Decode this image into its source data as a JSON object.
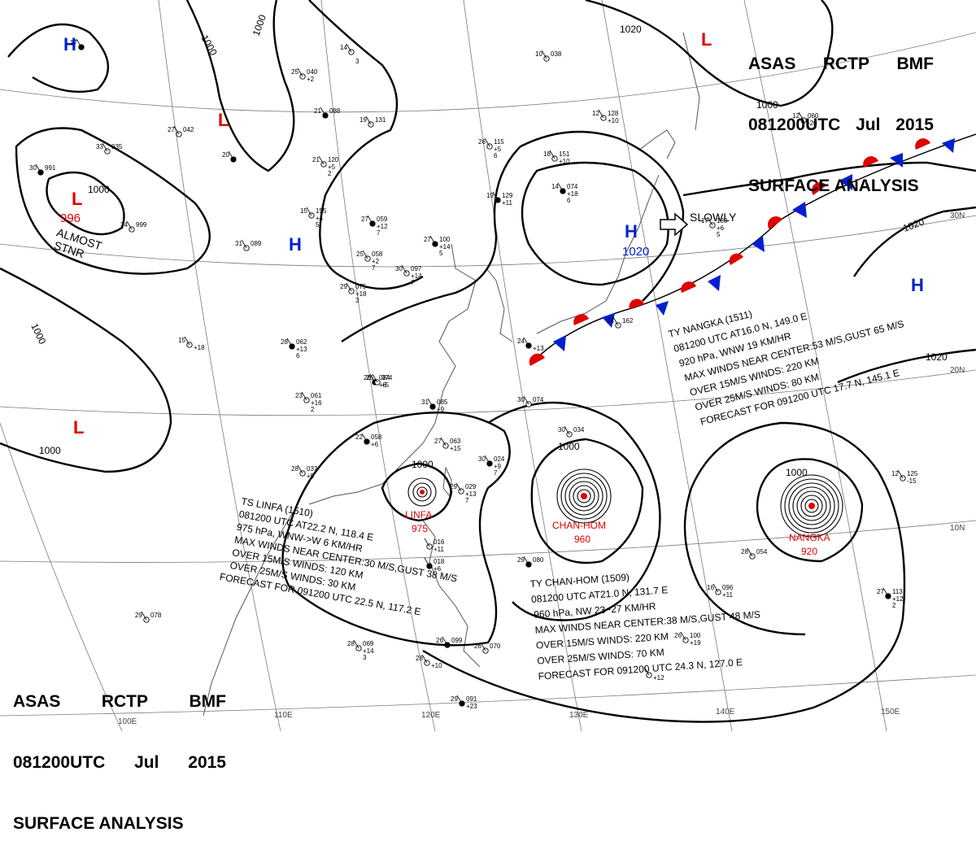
{
  "header": {
    "line1": [
      "ASAS",
      "RCTP",
      "BMF"
    ],
    "line2": [
      "081200UTC",
      "Jul",
      "2015"
    ],
    "line3": "SURFACE ANALYSIS"
  },
  "colors": {
    "low": "#e00000",
    "high": "#0020d0",
    "isobar": "#000000",
    "grid": "#7a7a7a",
    "coast": "#555555"
  },
  "grid_labels": {
    "lon": [
      "100E",
      "110E",
      "120E",
      "130E",
      "140E",
      "150E"
    ],
    "lat": [
      "30N",
      "20N",
      "10N"
    ]
  },
  "pressure_centers": [
    {
      "type": "H",
      "id": "h-nw"
    },
    {
      "type": "L",
      "id": "l-north-china"
    },
    {
      "type": "L",
      "id": "l-996",
      "value": "996"
    },
    {
      "type": "H",
      "id": "h-central-china"
    },
    {
      "type": "H",
      "id": "h-japan",
      "value": "1020"
    },
    {
      "type": "L",
      "id": "l-sea-of-okhotsk"
    },
    {
      "type": "H",
      "id": "h-pacific"
    },
    {
      "type": "L",
      "id": "l-india"
    }
  ],
  "annotations": {
    "almost_stnr": "ALMOST\nSTNR",
    "slowly": "SLOWLY"
  },
  "isobar_labels": [
    "1000",
    "1000",
    "1000",
    "1000",
    "1020",
    "1020",
    "1020",
    "1000",
    "1000",
    "1000",
    "1000"
  ],
  "storms": [
    {
      "id": "linfa",
      "name": "LINFA",
      "pressure": "975",
      "lines": [
        "TS  LINFA  (1510)",
        "081200 UTC  AT22.2 N, 118.4 E",
        "975 hPa, WNW->W  6 KM/HR",
        "MAX WINDS NEAR CENTER:30 M/S,GUST  38 M/S",
        "OVER 15M/S WINDS: 120 KM",
        "OVER 25M/S WINDS: 30 KM",
        "FORECAST FOR 091200 UTC 22.5 N, 117.2 E"
      ]
    },
    {
      "id": "chan-hom",
      "name": "CHAN-HOM",
      "pressure": "960",
      "lines": [
        "TY  CHAN-HOM  (1509)",
        "081200 UTC  AT21.0 N, 131.7 E",
        "960 hPa, NW  23~27 KM/HR",
        "MAX WINDS NEAR CENTER:38 M/S,GUST 48 M/S",
        "OVER 15M/S WINDS: 220 KM",
        "OVER 25M/S WINDS: 70 KM",
        "FORECAST FOR 091200 UTC 24.3 N, 127.0 E"
      ]
    },
    {
      "id": "nangka",
      "name": "NANGKA",
      "pressure": "920",
      "lines": [
        "TY  NANGKA  (1511)",
        "081200 UTC  AT16.0 N, 149.0 E",
        "920 hPa, WNW  19 KM/HR",
        "MAX WINDS NEAR CENTER:53 M/S,GUST 65 M/S",
        "OVER 15M/S WINDS: 220 KM",
        "OVER 25M/S WINDS: 80 KM",
        "FORECAST FOR 091200 UTC 17.7 N, 145.1 E"
      ]
    }
  ],
  "stations": [
    {
      "t": "17",
      "p": "",
      "tend": "",
      "dd": ""
    },
    {
      "t": "27",
      "p": "042",
      "tend": "",
      "dd": ""
    },
    {
      "t": "33",
      "p": "035",
      "tend": "",
      "dd": ""
    },
    {
      "t": "30",
      "p": "991",
      "tend": "",
      "dd": ""
    },
    {
      "t": "34",
      "p": "999",
      "tend": "",
      "dd": ""
    },
    {
      "t": "25",
      "p": "040",
      "tend": "+2",
      "dd": ""
    },
    {
      "t": "21",
      "p": "088",
      "tend": "",
      "dd": ""
    },
    {
      "t": "14",
      "p": "",
      "tend": "",
      "dd": "3"
    },
    {
      "t": "19",
      "p": "131",
      "tend": "",
      "dd": ""
    },
    {
      "t": "20",
      "p": "",
      "tend": "",
      "dd": ""
    },
    {
      "t": "21",
      "p": "120",
      "tend": "+5",
      "dd": "2"
    },
    {
      "t": "15",
      "p": "155",
      "tend": "+4",
      "dd": "5"
    },
    {
      "t": "27",
      "p": "059",
      "tend": "+12",
      "dd": "7"
    },
    {
      "t": "31",
      "p": "089",
      "tend": "",
      "dd": ""
    },
    {
      "t": "25",
      "p": "058",
      "tend": "+2",
      "dd": "7"
    },
    {
      "t": "27",
      "p": "100",
      "tend": "+14",
      "dd": "5"
    },
    {
      "t": "30",
      "p": "097",
      "tend": "+14",
      "dd": "7"
    },
    {
      "t": "29",
      "p": "075",
      "tend": "+18",
      "dd": "3"
    },
    {
      "t": "26",
      "p": "084",
      "tend": "+6",
      "dd": ""
    },
    {
      "t": "10",
      "p": "038",
      "tend": "",
      "dd": ""
    },
    {
      "t": "26",
      "p": "115",
      "tend": "+5",
      "dd": "6"
    },
    {
      "t": "19",
      "p": "129",
      "tend": "+11",
      "dd": ""
    },
    {
      "t": "18",
      "p": "151",
      "tend": "+10",
      "dd": ""
    },
    {
      "t": "12",
      "p": "128",
      "tend": "+10",
      "dd": ""
    },
    {
      "t": "14",
      "p": "074",
      "tend": "+18",
      "dd": "6"
    },
    {
      "t": "12",
      "p": "060",
      "tend": "-20",
      "dd": ""
    },
    {
      "t": "17",
      "p": "183",
      "tend": "+6",
      "dd": "5"
    },
    {
      "t": "28",
      "p": "062",
      "tend": "+13",
      "dd": "6"
    },
    {
      "t": "15",
      "p": "",
      "tend": "+18",
      "dd": ""
    },
    {
      "t": "26",
      "p": "074",
      "tend": "+5",
      "dd": ""
    },
    {
      "t": "24",
      "p": "",
      "tend": "+13",
      "dd": ""
    },
    {
      "t": "24",
      "p": "162",
      "tend": "",
      "dd": ""
    },
    {
      "t": "23",
      "p": "061",
      "tend": "+16",
      "dd": "2"
    },
    {
      "t": "31",
      "p": "085",
      "tend": "+9",
      "dd": ""
    },
    {
      "t": "30",
      "p": "074",
      "tend": "",
      "dd": ""
    },
    {
      "t": "27",
      "p": "063",
      "tend": "+15",
      "dd": ""
    },
    {
      "t": "30",
      "p": "024",
      "tend": "+9",
      "dd": "7"
    },
    {
      "t": "28",
      "p": "037",
      "tend": "+9",
      "dd": ""
    },
    {
      "t": "29",
      "p": "029",
      "tend": "+13",
      "dd": "7"
    },
    {
      "t": "22",
      "p": "058",
      "tend": "+6",
      "dd": ""
    },
    {
      "t": "30",
      "p": "034",
      "tend": "",
      "dd": ""
    },
    {
      "t": "28",
      "p": "054",
      "tend": "",
      "dd": ""
    },
    {
      "t": "29",
      "p": "080",
      "tend": "",
      "dd": ""
    },
    {
      "t": "16",
      "p": "096",
      "tend": "+11",
      "dd": ""
    },
    {
      "t": "12",
      "p": "125",
      "tend": "-15",
      "dd": ""
    },
    {
      "t": "27",
      "p": "113",
      "tend": "+12",
      "dd": "2"
    },
    {
      "t": "28",
      "p": "069",
      "tend": "+14",
      "dd": "3"
    },
    {
      "t": "28",
      "p": "",
      "tend": "+10",
      "dd": ""
    },
    {
      "t": "26",
      "p": "099",
      "tend": "",
      "dd": ""
    },
    {
      "t": "26",
      "p": "070",
      "tend": "",
      "dd": ""
    },
    {
      "t": "26",
      "p": "100",
      "tend": "+19",
      "dd": ""
    },
    {
      "t": "29",
      "p": "091",
      "tend": "+23",
      "dd": ""
    },
    {
      "t": "29",
      "p": "078",
      "tend": "",
      "dd": ""
    },
    {
      "t": "",
      "p": "",
      "tend": "+12",
      "dd": ""
    },
    {
      "t": "",
      "p": "018",
      "tend": "+6",
      "dd": ""
    },
    {
      "t": "",
      "p": "016",
      "tend": "+11",
      "dd": ""
    }
  ]
}
